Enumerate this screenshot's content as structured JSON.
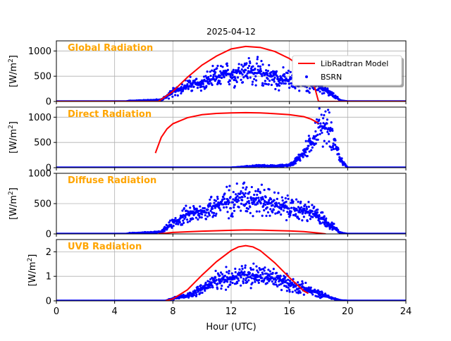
{
  "title": "2025-04-12",
  "colors": {
    "model": "#ff0000",
    "bsrn": "#0000ff",
    "panel_title": "#ffa500",
    "grid": "#b0b0b0"
  },
  "legend": {
    "model_label": "LibRadtran Model",
    "bsrn_label": "BSRN"
  },
  "chart_data": [
    {
      "type": "line",
      "title": "Global Radiation",
      "ylabel": "[W/m2]",
      "xlim": [
        0,
        24
      ],
      "ylim": [
        0,
        1200
      ],
      "yticks": [
        0,
        500,
        1000
      ],
      "xticks": [
        0,
        4,
        8,
        12,
        16,
        20,
        24
      ],
      "grid": true,
      "legend_position": "upper-right",
      "model": {
        "x": [
          0,
          7.0,
          8,
          9,
          10,
          11,
          12,
          13,
          14,
          15,
          16,
          17,
          17.5,
          18,
          19,
          24
        ],
        "y": [
          0,
          0,
          200,
          480,
          720,
          900,
          1040,
          1090,
          1070,
          990,
          850,
          640,
          530,
          0,
          0,
          0
        ]
      },
      "bsrn_envelope": {
        "x": [
          0,
          4.8,
          5,
          7.2,
          8,
          9,
          10,
          11,
          12,
          13,
          14,
          15,
          16,
          17,
          18,
          19,
          19.5,
          20,
          24
        ],
        "y": [
          0,
          0,
          10,
          30,
          180,
          320,
          360,
          480,
          550,
          620,
          560,
          470,
          420,
          380,
          300,
          120,
          20,
          0,
          0
        ]
      }
    },
    {
      "type": "line",
      "title": "Direct Radiation",
      "ylabel": "[W/m2]",
      "xlim": [
        0,
        24
      ],
      "ylim": [
        0,
        1200
      ],
      "yticks": [
        0,
        500,
        1000
      ],
      "xticks": [
        0,
        4,
        8,
        12,
        16,
        20,
        24
      ],
      "grid": true,
      "model": {
        "x": [
          6.8,
          7.2,
          7.6,
          8,
          9,
          10,
          11,
          12,
          13,
          14,
          15,
          16,
          17,
          17.5,
          18
        ],
        "y": [
          290,
          600,
          770,
          870,
          990,
          1050,
          1075,
          1085,
          1090,
          1085,
          1070,
          1050,
          1010,
          960,
          880
        ]
      },
      "bsrn_envelope": {
        "x": [
          0,
          12,
          13,
          14,
          15,
          16,
          16.5,
          17,
          17.5,
          18,
          18.3,
          18.7,
          19,
          19.3,
          19.5,
          20,
          24
        ],
        "y": [
          0,
          0,
          20,
          40,
          30,
          50,
          150,
          300,
          500,
          800,
          830,
          780,
          600,
          350,
          150,
          0,
          0
        ]
      }
    },
    {
      "type": "line",
      "title": "Diffuse Radiation",
      "ylabel": "[W/m2]",
      "xlim": [
        0,
        24
      ],
      "ylim": [
        0,
        1000
      ],
      "yticks": [
        0,
        500,
        1000
      ],
      "xticks": [
        0,
        4,
        8,
        12,
        16,
        20,
        24
      ],
      "grid": true,
      "model": {
        "x": [
          7.0,
          8,
          10,
          12,
          13,
          14,
          16,
          17,
          18,
          18.5
        ],
        "y": [
          0,
          25,
          45,
          60,
          65,
          62,
          50,
          38,
          15,
          0
        ]
      },
      "bsrn_envelope": {
        "x": [
          0,
          4.8,
          5,
          7.2,
          8,
          9,
          10,
          11,
          12,
          13,
          14,
          15,
          16,
          17,
          18,
          19,
          19.5,
          20,
          24
        ],
        "y": [
          0,
          0,
          10,
          30,
          180,
          320,
          360,
          480,
          550,
          620,
          560,
          470,
          420,
          380,
          300,
          120,
          20,
          0,
          0
        ]
      }
    },
    {
      "type": "line",
      "title": "UVB Radiation",
      "ylabel": "[W/m2]",
      "xlim": [
        0,
        24
      ],
      "ylim": [
        0,
        2.5
      ],
      "yticks": [
        0,
        1,
        2
      ],
      "xticks": [
        0,
        4,
        8,
        12,
        16,
        20,
        24
      ],
      "xlabel": "Hour (UTC)",
      "grid": true,
      "model": {
        "x": [
          7.5,
          8,
          9,
          10,
          11,
          12,
          12.5,
          13,
          13.5,
          14,
          15,
          16,
          17,
          17.3
        ],
        "y": [
          0,
          0.08,
          0.45,
          1.05,
          1.6,
          2.05,
          2.2,
          2.25,
          2.2,
          2.05,
          1.55,
          0.95,
          0.4,
          0.3
        ]
      },
      "bsrn_envelope": {
        "x": [
          0,
          7.5,
          8,
          9,
          10,
          11,
          12,
          13,
          14,
          15,
          16,
          17,
          18,
          19,
          19.5,
          20,
          24
        ],
        "y": [
          0,
          0,
          0.1,
          0.2,
          0.5,
          0.8,
          0.95,
          1.1,
          1.0,
          0.9,
          0.7,
          0.5,
          0.3,
          0.1,
          0.02,
          0,
          0
        ]
      }
    }
  ]
}
